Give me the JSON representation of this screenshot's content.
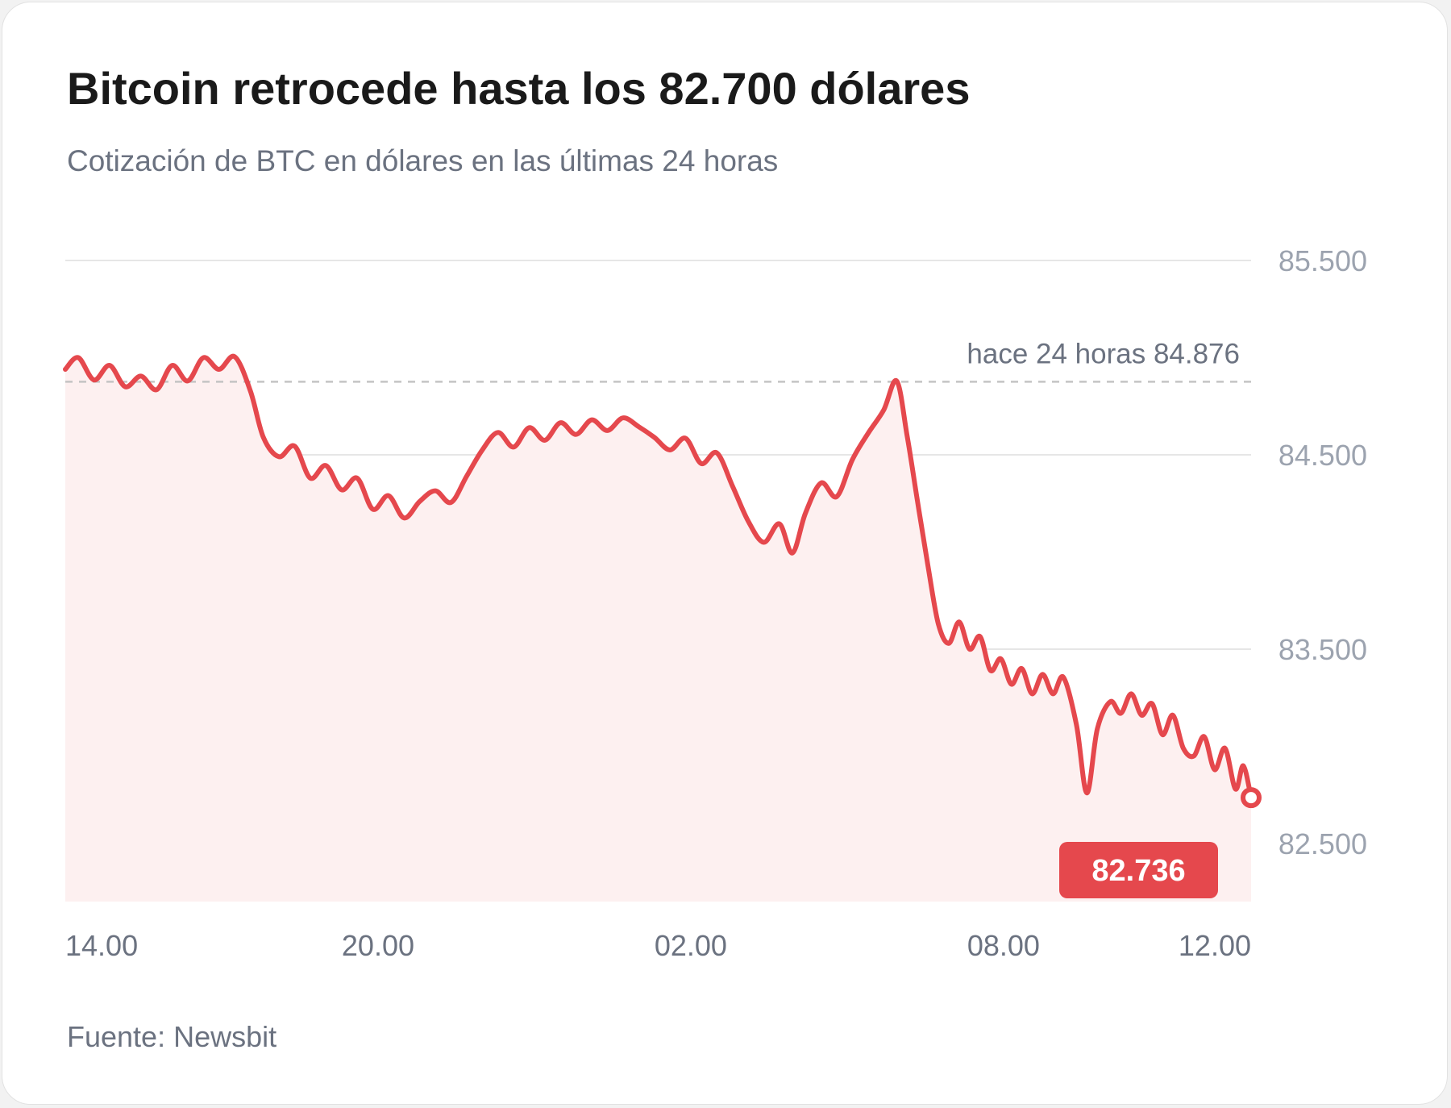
{
  "title": "Bitcoin retrocede hasta los 82.700 dólares",
  "subtitle": "Cotización de BTC en dólares en las últimas 24 horas",
  "source": "Fuente: Newsbit",
  "colors": {
    "line": "#e5484d",
    "area": "#fdf0f0",
    "grid": "#e6e6e6",
    "axis_text": "#9ca3af",
    "x_text": "#6b7280",
    "ref_line": "#c4c4c4",
    "badge": "#e5484d"
  },
  "chart_data": {
    "type": "area",
    "title": "Bitcoin retrocede hasta los 82.700 dólares",
    "subtitle": "Cotización de BTC en dólares en las últimas 24 horas",
    "xlabel": "",
    "ylabel": "",
    "ylim": [
      82200,
      85500
    ],
    "xlim_hours": [
      0,
      22.75
    ],
    "y_ticks": [
      {
        "value": 85500,
        "label": "85.500"
      },
      {
        "value": 84500,
        "label": "84.500"
      },
      {
        "value": 83500,
        "label": "83.500"
      },
      {
        "value": 82500,
        "label": "82.500"
      }
    ],
    "x_ticks": [
      {
        "hour": 0,
        "label": "14.00"
      },
      {
        "hour": 6,
        "label": "20.00"
      },
      {
        "hour": 12,
        "label": "02.00"
      },
      {
        "hour": 18,
        "label": "08.00"
      },
      {
        "hour": 22,
        "label": "12.00"
      }
    ],
    "reference": {
      "value": 84876,
      "label": "hace 24 horas 84.876"
    },
    "last_value": {
      "value": 82736,
      "label": "82.736"
    },
    "grid": true,
    "legend": "none",
    "series": [
      {
        "values": [
          [
            0.0,
            84940
          ],
          [
            0.25,
            85000
          ],
          [
            0.55,
            84885
          ],
          [
            0.85,
            84960
          ],
          [
            1.15,
            84850
          ],
          [
            1.45,
            84905
          ],
          [
            1.75,
            84835
          ],
          [
            2.05,
            84960
          ],
          [
            2.35,
            84880
          ],
          [
            2.65,
            85000
          ],
          [
            2.95,
            84940
          ],
          [
            3.25,
            85005
          ],
          [
            3.55,
            84830
          ],
          [
            3.8,
            84590
          ],
          [
            4.1,
            84490
          ],
          [
            4.4,
            84545
          ],
          [
            4.7,
            84380
          ],
          [
            5.0,
            84445
          ],
          [
            5.3,
            84320
          ],
          [
            5.6,
            84380
          ],
          [
            5.9,
            84220
          ],
          [
            6.2,
            84290
          ],
          [
            6.5,
            84175
          ],
          [
            6.8,
            84260
          ],
          [
            7.1,
            84315
          ],
          [
            7.4,
            84255
          ],
          [
            7.7,
            84390
          ],
          [
            8.0,
            84525
          ],
          [
            8.3,
            84615
          ],
          [
            8.6,
            84540
          ],
          [
            8.9,
            84640
          ],
          [
            9.2,
            84575
          ],
          [
            9.5,
            84665
          ],
          [
            9.8,
            84605
          ],
          [
            10.1,
            84680
          ],
          [
            10.4,
            84625
          ],
          [
            10.7,
            84690
          ],
          [
            11.0,
            84645
          ],
          [
            11.3,
            84590
          ],
          [
            11.6,
            84525
          ],
          [
            11.9,
            84585
          ],
          [
            12.2,
            84455
          ],
          [
            12.5,
            84510
          ],
          [
            12.8,
            84340
          ],
          [
            13.1,
            84160
          ],
          [
            13.4,
            84050
          ],
          [
            13.7,
            84145
          ],
          [
            13.95,
            83995
          ],
          [
            14.2,
            84200
          ],
          [
            14.5,
            84355
          ],
          [
            14.8,
            84285
          ],
          [
            15.1,
            84475
          ],
          [
            15.4,
            84610
          ],
          [
            15.7,
            84730
          ],
          [
            15.95,
            84880
          ],
          [
            16.15,
            84600
          ],
          [
            16.35,
            84260
          ],
          [
            16.55,
            83930
          ],
          [
            16.75,
            83630
          ],
          [
            16.95,
            83530
          ],
          [
            17.15,
            83640
          ],
          [
            17.35,
            83500
          ],
          [
            17.55,
            83565
          ],
          [
            17.75,
            83390
          ],
          [
            17.95,
            83450
          ],
          [
            18.15,
            83320
          ],
          [
            18.35,
            83400
          ],
          [
            18.55,
            83270
          ],
          [
            18.75,
            83370
          ],
          [
            18.95,
            83270
          ],
          [
            19.15,
            83355
          ],
          [
            19.4,
            83110
          ],
          [
            19.6,
            82760
          ],
          [
            19.8,
            83090
          ],
          [
            20.05,
            83230
          ],
          [
            20.25,
            83170
          ],
          [
            20.45,
            83270
          ],
          [
            20.65,
            83160
          ],
          [
            20.85,
            83220
          ],
          [
            21.05,
            83060
          ],
          [
            21.25,
            83160
          ],
          [
            21.45,
            82990
          ],
          [
            21.65,
            82950
          ],
          [
            21.85,
            83050
          ],
          [
            22.05,
            82880
          ],
          [
            22.25,
            82990
          ],
          [
            22.45,
            82780
          ],
          [
            22.6,
            82900
          ],
          [
            22.75,
            82736
          ]
        ]
      }
    ]
  }
}
